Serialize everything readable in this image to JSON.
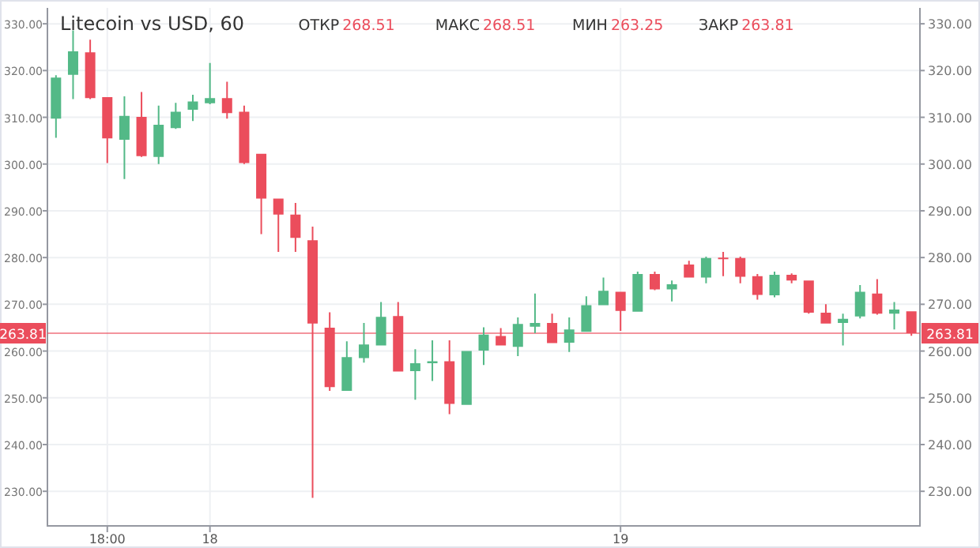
{
  "chart_data": {
    "type": "candlestick",
    "title": "Litecoin vs USD, 60",
    "annotations": [
      "ОТКР 268.51",
      "МАКС 268.51",
      "МИН 263.25",
      "ЗАКР 263.81"
    ],
    "categories": [
      null,
      null,
      null,
      "18:00",
      null,
      null,
      null,
      null,
      null,
      "18",
      null,
      null,
      null,
      null,
      null,
      null,
      null,
      null,
      null,
      null,
      null,
      null,
      null,
      null,
      null,
      null,
      null,
      null,
      null,
      null,
      null,
      null,
      null,
      "19",
      null,
      null,
      null,
      null,
      null,
      null,
      null,
      null,
      null,
      null,
      null,
      null,
      null,
      null,
      null,
      null,
      null
    ],
    "ohlc": [
      [
        309.7,
        319.0,
        305.6,
        318.5
      ],
      [
        319.1,
        328.6,
        313.9,
        324.1
      ],
      [
        323.9,
        326.6,
        313.9,
        314.1
      ],
      [
        314.3,
        314.3,
        300.2,
        305.5
      ],
      [
        305.2,
        314.5,
        296.8,
        310.3
      ],
      [
        310.1,
        315.4,
        301.5,
        301.7
      ],
      [
        301.5,
        312.5,
        300.0,
        308.4
      ],
      [
        307.7,
        313.1,
        307.5,
        311.2
      ],
      [
        311.6,
        314.8,
        309.2,
        313.4
      ],
      [
        313.0,
        321.6,
        312.8,
        314.1
      ],
      [
        314.1,
        317.6,
        309.7,
        310.9
      ],
      [
        311.2,
        312.5,
        300.0,
        300.2
      ],
      [
        302.2,
        302.2,
        285.0,
        292.6
      ],
      [
        292.6,
        292.6,
        281.2,
        289.2
      ],
      [
        289.2,
        291.7,
        281.2,
        284.2
      ],
      [
        283.7,
        286.6,
        228.6,
        265.9
      ],
      [
        265.0,
        268.3,
        251.5,
        252.3
      ],
      [
        251.5,
        262.1,
        251.5,
        258.7
      ],
      [
        258.5,
        266.0,
        257.5,
        261.4
      ],
      [
        261.2,
        270.5,
        261.2,
        267.3
      ],
      [
        267.5,
        270.5,
        255.6,
        255.6
      ],
      [
        255.7,
        260.4,
        249.6,
        257.4
      ],
      [
        257.4,
        262.3,
        253.6,
        257.8
      ],
      [
        257.8,
        262.3,
        246.5,
        248.7
      ],
      [
        248.5,
        260.0,
        248.5,
        260.0
      ],
      [
        260.1,
        265.1,
        257.0,
        263.5
      ],
      [
        263.2,
        264.9,
        261.2,
        261.2
      ],
      [
        260.9,
        267.2,
        258.9,
        265.8
      ],
      [
        265.2,
        272.3,
        263.8,
        266.0
      ],
      [
        266.0,
        268.0,
        261.7,
        261.7
      ],
      [
        261.8,
        267.2,
        259.8,
        264.6
      ],
      [
        264.1,
        271.7,
        264.1,
        269.8
      ],
      [
        269.8,
        275.7,
        269.8,
        272.9
      ],
      [
        272.7,
        272.7,
        264.3,
        268.6
      ],
      [
        268.4,
        277.0,
        268.4,
        276.5
      ],
      [
        276.5,
        277.0,
        273.0,
        273.2
      ],
      [
        273.2,
        275.1,
        270.6,
        274.3
      ],
      [
        278.5,
        279.3,
        275.7,
        275.7
      ],
      [
        275.7,
        280.2,
        274.5,
        279.9
      ],
      [
        280.0,
        281.2,
        276.0,
        279.7
      ],
      [
        279.9,
        280.2,
        274.5,
        275.9
      ],
      [
        276.0,
        276.5,
        271.0,
        272.0
      ],
      [
        271.9,
        277.0,
        271.5,
        276.3
      ],
      [
        276.3,
        276.6,
        274.5,
        275.1
      ],
      [
        275.1,
        275.1,
        268.0,
        268.2
      ],
      [
        268.2,
        270.0,
        265.9,
        265.9
      ],
      [
        266.0,
        268.0,
        261.2,
        266.9
      ],
      [
        267.4,
        274.1,
        267.0,
        272.7
      ],
      [
        272.3,
        275.4,
        267.8,
        268.0
      ],
      [
        268.0,
        270.5,
        264.6,
        268.9
      ],
      [
        268.51,
        268.51,
        263.25,
        263.81
      ]
    ],
    "colors": [
      "#53b987",
      "#53b987",
      "#eb4d5c",
      "#eb4d5c",
      "#53b987",
      "#eb4d5c",
      "#53b987",
      "#53b987",
      "#53b987",
      "#53b987",
      "#eb4d5c",
      "#eb4d5c",
      "#eb4d5c",
      "#eb4d5c",
      "#eb4d5c",
      "#eb4d5c",
      "#eb4d5c",
      "#53b987",
      "#53b987",
      "#53b987",
      "#eb4d5c",
      "#53b987",
      "#53b987",
      "#eb4d5c",
      "#53b987",
      "#53b987",
      "#eb4d5c",
      "#53b987",
      "#53b987",
      "#eb4d5c",
      "#53b987",
      "#53b987",
      "#53b987",
      "#eb4d5c",
      "#53b987",
      "#eb4d5c",
      "#53b987",
      "#eb4d5c",
      "#53b987",
      "#eb4d5c",
      "#eb4d5c",
      "#eb4d5c",
      "#53b987",
      "#eb4d5c",
      "#eb4d5c",
      "#eb4d5c",
      "#53b987",
      "#53b987",
      "#eb4d5c",
      "#53b987",
      "#eb4d5c"
    ],
    "ylim": [
      222.6,
      333.4
    ],
    "yticks": [
      {
        "value": 230,
        "label": "230.00"
      },
      {
        "value": 240,
        "label": "240.00"
      },
      {
        "value": 250,
        "label": "250.00"
      },
      {
        "value": 260,
        "label": "260.00"
      },
      {
        "value": 270,
        "label": "270.00"
      },
      {
        "value": 280,
        "label": "280.00"
      },
      {
        "value": 290,
        "label": "290.00"
      },
      {
        "value": 300,
        "label": "300.00"
      },
      {
        "value": 310,
        "label": "310.00"
      },
      {
        "value": 320,
        "label": "320.00"
      },
      {
        "value": 330,
        "label": "330.00"
      }
    ],
    "y2lim": [
      222.6,
      333.4
    ],
    "y2ticks": [
      {
        "value": 230,
        "label": "230.00"
      },
      {
        "value": 240,
        "label": "240.00"
      },
      {
        "value": 250,
        "label": "250.00"
      },
      {
        "value": 260,
        "label": "260.00"
      },
      {
        "value": 270,
        "label": "270.00"
      },
      {
        "value": 280,
        "label": "280.00"
      },
      {
        "value": 290,
        "label": "290.00"
      },
      {
        "value": 300,
        "label": "300.00"
      },
      {
        "value": 310,
        "label": "310.00"
      },
      {
        "value": 320,
        "label": "320.00"
      },
      {
        "value": 330,
        "label": "330.00"
      }
    ],
    "grid": true,
    "ref_lines": [
      {
        "axis": "y",
        "value": 263.81,
        "label": "263.81",
        "color": "#eb4d5c"
      }
    ]
  }
}
